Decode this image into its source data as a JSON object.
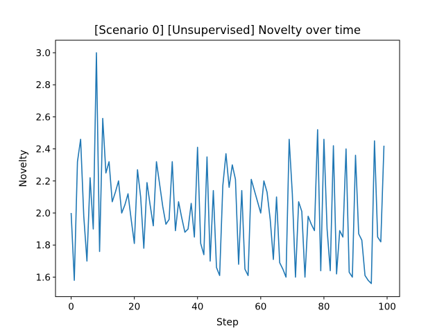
{
  "chart_data": {
    "type": "line",
    "title": "[Scenario 0] [Unsupervised] Novelty over time",
    "xlabel": "Step",
    "ylabel": "Novelty",
    "xlim": [
      -4.95,
      103.95
    ],
    "ylim": [
      1.478,
      3.078
    ],
    "x_ticks": [
      0,
      20,
      40,
      60,
      80,
      100
    ],
    "y_ticks": [
      1.6,
      1.8,
      2.0,
      2.2,
      2.4,
      2.6,
      2.8,
      3.0
    ],
    "grid": false,
    "line_color": "#1f77b4",
    "series": [
      {
        "x": [
          0,
          1,
          2,
          3,
          4,
          5,
          6,
          7,
          8,
          9,
          10,
          11,
          12,
          13,
          14,
          15,
          16,
          17,
          18,
          19,
          20,
          21,
          22,
          23,
          24,
          25,
          26,
          27,
          28,
          29,
          30,
          31,
          32,
          33,
          34,
          35,
          36,
          37,
          38,
          39,
          40,
          41,
          42,
          43,
          44,
          45,
          46,
          47,
          48,
          49,
          50,
          51,
          52,
          53,
          54,
          55,
          56,
          57,
          58,
          59,
          60,
          61,
          62,
          63,
          64,
          65,
          66,
          67,
          68,
          69,
          70,
          71,
          72,
          73,
          74,
          75,
          76,
          77,
          78,
          79,
          80,
          81,
          82,
          83,
          84,
          85,
          86,
          87,
          88,
          89,
          90,
          91,
          92,
          93,
          94,
          95,
          96,
          97,
          98,
          99
        ],
        "values": [
          2.0,
          1.58,
          2.32,
          2.46,
          1.98,
          1.7,
          2.22,
          1.9,
          3.0,
          1.76,
          2.59,
          2.25,
          2.32,
          2.07,
          2.13,
          2.2,
          2.0,
          2.05,
          2.12,
          1.96,
          1.81,
          2.27,
          2.1,
          1.78,
          2.19,
          2.05,
          1.92,
          2.32,
          2.18,
          2.04,
          1.93,
          1.96,
          2.32,
          1.89,
          2.07,
          1.97,
          1.88,
          1.9,
          2.06,
          1.85,
          2.41,
          1.81,
          1.74,
          2.35,
          1.7,
          2.14,
          1.66,
          1.61,
          2.17,
          2.37,
          2.16,
          2.3,
          2.21,
          1.68,
          2.14,
          1.65,
          1.61,
          2.21,
          2.14,
          2.07,
          2.0,
          2.2,
          2.13,
          1.96,
          1.71,
          2.1,
          1.69,
          1.65,
          1.6,
          2.46,
          2.12,
          1.6,
          2.07,
          2.01,
          1.6,
          1.98,
          1.93,
          1.89,
          2.52,
          1.64,
          2.46,
          1.9,
          1.64,
          2.42,
          1.62,
          1.89,
          1.85,
          2.4,
          1.63,
          1.6,
          2.36,
          1.87,
          1.83,
          1.61,
          1.58,
          1.56,
          2.45,
          1.85,
          1.82,
          2.42
        ]
      }
    ]
  }
}
